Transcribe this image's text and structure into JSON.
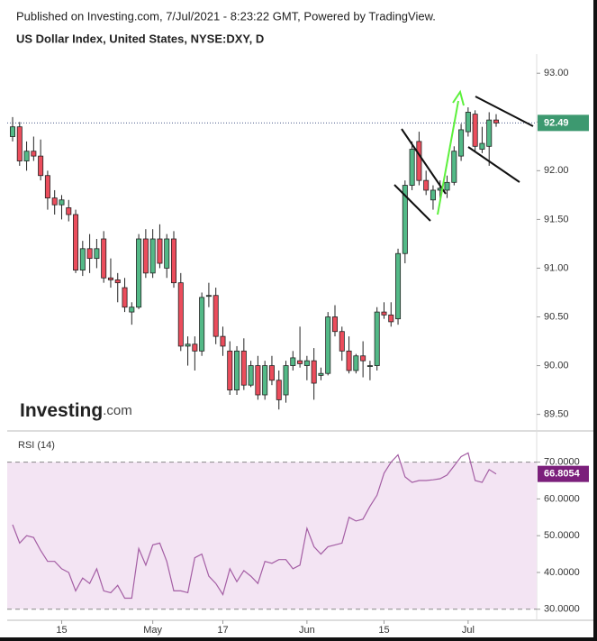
{
  "header": {
    "published": "Published on Investing.com, 7/Jul/2021 - 8:23:22 GMT, Powered by TradingView."
  },
  "logo": {
    "main": "Investing",
    "suffix": ".com"
  },
  "chart_data": [
    {
      "type": "candlestick",
      "title": "US Dollar Index, United States, NYSE:DXY, D",
      "categories": [
        null,
        null,
        null,
        null,
        null,
        null,
        null,
        "15",
        null,
        null,
        null,
        null,
        null,
        null,
        null,
        null,
        null,
        null,
        null,
        null,
        "May",
        null,
        null,
        null,
        null,
        null,
        null,
        null,
        null,
        null,
        "17",
        null,
        null,
        null,
        null,
        null,
        null,
        null,
        null,
        null,
        null,
        null,
        "Jun",
        null,
        null,
        null,
        null,
        null,
        null,
        null,
        null,
        null,
        null,
        "15",
        null,
        null,
        null,
        null,
        null,
        null,
        null,
        null,
        null,
        null,
        null,
        "Jul",
        null,
        null,
        null,
        null
      ],
      "open": [
        92.35,
        92.45,
        92.1,
        92.2,
        92.15,
        91.95,
        91.72,
        91.65,
        91.62,
        91.55,
        90.98,
        91.2,
        91.1,
        91.3,
        90.9,
        90.88,
        90.8,
        90.55,
        90.6,
        91.3,
        90.95,
        91.3,
        91.0,
        91.3,
        90.85,
        90.2,
        90.22,
        90.15,
        90.72,
        90.72,
        90.3,
        90.15,
        89.75,
        90.15,
        89.8,
        90.0,
        89.7,
        90.0,
        89.85,
        89.7,
        90.0,
        90.05,
        90.0,
        90.05,
        89.9,
        89.92,
        90.5,
        90.35,
        90.15,
        89.95,
        90.1,
        90.0,
        90.0,
        90.55,
        90.52,
        90.48,
        91.15,
        91.85,
        92.3,
        91.9,
        91.7,
        91.8,
        91.8,
        91.88,
        92.15,
        92.4,
        92.58,
        92.22,
        92.25,
        92.52
      ],
      "high": [
        92.55,
        92.5,
        92.3,
        92.35,
        92.32,
        92.0,
        91.8,
        91.75,
        91.7,
        91.6,
        91.28,
        91.35,
        91.3,
        91.38,
        91.1,
        90.95,
        90.9,
        90.65,
        91.35,
        91.4,
        91.4,
        91.45,
        91.35,
        91.38,
        90.95,
        90.3,
        90.3,
        90.75,
        90.85,
        90.8,
        90.4,
        90.25,
        90.2,
        90.28,
        90.05,
        90.1,
        90.05,
        90.1,
        89.95,
        90.05,
        90.15,
        90.4,
        90.1,
        90.18,
        89.98,
        90.55,
        90.62,
        90.4,
        90.3,
        90.12,
        90.25,
        90.05,
        90.6,
        90.65,
        90.65,
        91.2,
        91.9,
        92.3,
        92.4,
        92.0,
        91.85,
        91.9,
        91.95,
        92.25,
        92.48,
        92.65,
        92.62,
        92.45,
        92.6,
        92.58
      ],
      "low": [
        92.3,
        92.05,
        92.0,
        92.1,
        91.9,
        91.6,
        91.55,
        91.5,
        91.48,
        90.95,
        90.92,
        90.95,
        91.0,
        90.85,
        90.8,
        90.65,
        90.55,
        90.42,
        90.58,
        90.9,
        90.9,
        91.0,
        90.9,
        90.8,
        90.15,
        90.0,
        89.95,
        90.1,
        90.6,
        90.22,
        90.1,
        89.7,
        89.7,
        89.75,
        89.78,
        89.65,
        89.65,
        89.8,
        89.55,
        89.62,
        89.95,
        89.98,
        89.85,
        89.65,
        89.85,
        89.9,
        90.3,
        90.05,
        89.92,
        89.92,
        89.88,
        89.85,
        89.95,
        90.48,
        90.4,
        90.42,
        91.05,
        91.8,
        91.85,
        91.75,
        91.6,
        91.72,
        91.72,
        91.85,
        92.1,
        92.35,
        92.2,
        92.18,
        92.05,
        92.45
      ],
      "close": [
        92.45,
        92.1,
        92.2,
        92.15,
        91.95,
        91.72,
        91.65,
        91.7,
        91.55,
        90.98,
        91.2,
        91.1,
        91.2,
        90.9,
        90.88,
        90.85,
        90.6,
        90.6,
        91.3,
        90.95,
        91.3,
        91.05,
        91.3,
        90.85,
        90.2,
        90.22,
        90.15,
        90.7,
        90.72,
        90.3,
        90.2,
        89.75,
        90.15,
        89.8,
        90.0,
        89.7,
        90.0,
        89.85,
        89.65,
        90.0,
        90.08,
        90.02,
        90.05,
        89.82,
        89.92,
        90.5,
        90.35,
        90.15,
        89.95,
        90.1,
        90.05,
        90.0,
        90.55,
        90.52,
        90.45,
        91.15,
        91.85,
        92.22,
        91.9,
        91.8,
        91.8,
        91.82,
        91.88,
        92.2,
        92.42,
        92.6,
        92.25,
        92.28,
        92.52,
        92.49
      ],
      "up_color": "#53b987",
      "down_color": "#eb4d5c",
      "ylim": [
        89.33,
        93.15
      ],
      "yticks": [
        {
          "value": 89.5,
          "label": "89.50"
        },
        {
          "value": 90,
          "label": "90.00"
        },
        {
          "value": 90.5,
          "label": "90.50"
        },
        {
          "value": 91,
          "label": "91.00"
        },
        {
          "value": 91.5,
          "label": "91.50"
        },
        {
          "value": 92,
          "label": "92.00"
        },
        {
          "value": 92.5,
          "label": "92.50"
        },
        {
          "value": 93,
          "label": "93.00"
        }
      ],
      "last_value": 92.49,
      "last_color": "#3d9970"
    },
    {
      "type": "line",
      "title": "RSI (14)",
      "values": [
        53,
        48,
        50,
        49.5,
        46,
        43,
        43,
        41,
        40,
        35,
        38.5,
        37,
        41,
        35,
        34.5,
        36.5,
        33,
        33,
        46.5,
        42,
        47.5,
        48,
        43,
        35,
        35,
        34.5,
        44,
        45,
        39,
        37,
        34,
        41,
        37.5,
        40.5,
        39,
        37,
        43,
        42.5,
        43.5,
        43.5,
        41,
        42,
        52,
        47,
        45,
        47,
        47.5,
        48,
        55,
        54,
        54.5,
        58,
        61,
        67,
        70,
        72,
        66,
        64.5,
        65,
        65,
        65.2,
        65.5,
        66.5,
        69,
        71.5,
        72.5,
        65,
        64.5,
        68,
        66.8054
      ],
      "color": "#a45ea4",
      "band": [
        30,
        70
      ],
      "band_color": "#f3e4f3",
      "ylim": [
        27,
        78
      ],
      "yticks": [
        {
          "value": 30,
          "label": "30.0000"
        },
        {
          "value": 40,
          "label": "40.0000"
        },
        {
          "value": 50,
          "label": "50.0000"
        },
        {
          "value": 60,
          "label": "60.0000"
        },
        {
          "value": 70,
          "label": "70.0000"
        }
      ],
      "last_value": 66.8054,
      "last_color": "#7b1f7b"
    }
  ]
}
